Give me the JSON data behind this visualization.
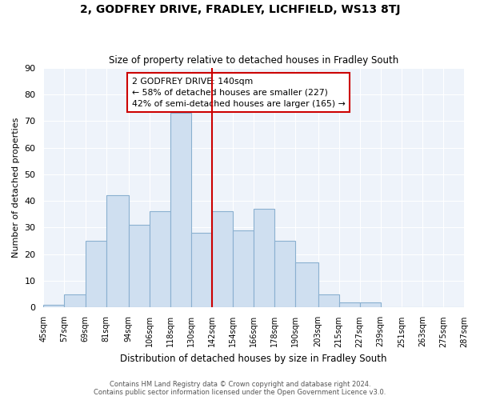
{
  "title": "2, GODFREY DRIVE, FRADLEY, LICHFIELD, WS13 8TJ",
  "subtitle": "Size of property relative to detached houses in Fradley South",
  "xlabel": "Distribution of detached houses by size in Fradley South",
  "ylabel": "Number of detached properties",
  "footer_line1": "Contains HM Land Registry data © Crown copyright and database right 2024.",
  "footer_line2": "Contains public sector information licensed under the Open Government Licence v3.0.",
  "bin_labels": [
    "45sqm",
    "57sqm",
    "69sqm",
    "81sqm",
    "94sqm",
    "106sqm",
    "118sqm",
    "130sqm",
    "142sqm",
    "154sqm",
    "166sqm",
    "178sqm",
    "190sqm",
    "203sqm",
    "215sqm",
    "227sqm",
    "239sqm",
    "251sqm",
    "263sqm",
    "275sqm",
    "287sqm"
  ],
  "bar_heights": [
    1,
    5,
    25,
    42,
    31,
    36,
    73,
    28,
    36,
    29,
    37,
    25,
    17,
    5,
    2,
    2,
    0,
    0,
    0,
    0
  ],
  "bar_color": "#cfdff0",
  "bar_edge_color": "#8ab0d0",
  "vline_x": 142,
  "vline_color": "#cc0000",
  "annotation_title": "2 GODFREY DRIVE: 140sqm",
  "annotation_line1": "← 58% of detached houses are smaller (227)",
  "annotation_line2": "42% of semi-detached houses are larger (165) →",
  "annotation_box_color": "#ffffff",
  "annotation_box_edge": "#cc0000",
  "ylim": [
    0,
    90
  ],
  "yticks": [
    0,
    10,
    20,
    30,
    40,
    50,
    60,
    70,
    80,
    90
  ],
  "bg_color": "#eef3fa",
  "grid_color": "#ffffff",
  "bin_edges": [
    45,
    57,
    69,
    81,
    94,
    106,
    118,
    130,
    142,
    154,
    166,
    178,
    190,
    203,
    215,
    227,
    239,
    251,
    263,
    275,
    287
  ]
}
